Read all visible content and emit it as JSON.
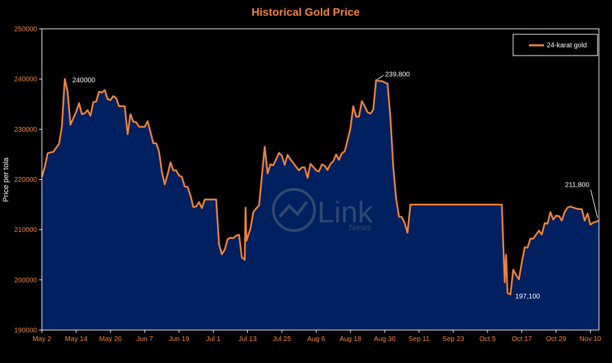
{
  "chart_data": {
    "type": "area",
    "title": "Historical Gold Price",
    "ylabel": "Price per tola",
    "xlabel": "",
    "ylim": [
      190000,
      250000
    ],
    "yticks": [
      190000,
      200000,
      210000,
      220000,
      230000,
      240000,
      250000
    ],
    "xticks": [
      "May 2",
      "May 14",
      "May 26",
      "Jun 7",
      "Jun 19",
      "Jul 1",
      "Jul 13",
      "Jul 25",
      "Aug 6",
      "Aug 18",
      "Aug 30",
      "Sep 11",
      "Sep 23",
      "Oct 5",
      "Oct 17",
      "Oct 29",
      "Nov 10"
    ],
    "x_day_span": 195,
    "legend": {
      "entries": [
        "24-karat gold"
      ],
      "placement": "top-right"
    },
    "series": [
      {
        "name": "24-karat gold",
        "points": [
          [
            0,
            220500
          ],
          [
            1,
            222500
          ],
          [
            2,
            225200
          ],
          [
            3,
            225400
          ],
          [
            4,
            225500
          ],
          [
            5,
            226300
          ],
          [
            6,
            227100
          ],
          [
            7,
            230500
          ],
          [
            8,
            240000
          ],
          [
            9,
            237500
          ],
          [
            10,
            230900
          ],
          [
            11,
            232200
          ],
          [
            12,
            233500
          ],
          [
            13,
            235200
          ],
          [
            14,
            233000
          ],
          [
            15,
            233200
          ],
          [
            16,
            233800
          ],
          [
            17,
            232700
          ],
          [
            18,
            235400
          ],
          [
            19,
            235500
          ],
          [
            20,
            237500
          ],
          [
            21,
            237300
          ],
          [
            22,
            237800
          ],
          [
            23,
            236000
          ],
          [
            24,
            235800
          ],
          [
            25,
            236600
          ],
          [
            26,
            236200
          ],
          [
            27,
            234600
          ],
          [
            28,
            234600
          ],
          [
            29,
            234600
          ],
          [
            30,
            229000
          ],
          [
            31,
            233000
          ],
          [
            32,
            231500
          ],
          [
            33,
            231400
          ],
          [
            34,
            230500
          ],
          [
            35,
            230500
          ],
          [
            36,
            230500
          ],
          [
            37,
            231600
          ],
          [
            38,
            229500
          ],
          [
            39,
            227200
          ],
          [
            40,
            227200
          ],
          [
            41,
            225600
          ],
          [
            42,
            221500
          ],
          [
            43,
            219000
          ],
          [
            44,
            221000
          ],
          [
            45,
            223400
          ],
          [
            46,
            221800
          ],
          [
            47,
            221800
          ],
          [
            48,
            220800
          ],
          [
            49,
            220500
          ],
          [
            50,
            218600
          ],
          [
            51,
            218500
          ],
          [
            52,
            216800
          ],
          [
            53,
            214500
          ],
          [
            54,
            214600
          ],
          [
            55,
            215500
          ],
          [
            56,
            214300
          ],
          [
            57,
            216000
          ],
          [
            58,
            216000
          ],
          [
            59,
            216000
          ],
          [
            60,
            216000
          ],
          [
            61,
            216000
          ],
          [
            62,
            207100
          ],
          [
            63,
            205100
          ],
          [
            64,
            206000
          ],
          [
            65,
            208100
          ],
          [
            66,
            208400
          ],
          [
            67,
            208300
          ],
          [
            68,
            208800
          ],
          [
            69,
            209000
          ],
          [
            70,
            204500
          ],
          [
            71,
            204000
          ],
          [
            71.3,
            214400
          ],
          [
            71.6,
            207800
          ],
          [
            73,
            210200
          ],
          [
            74,
            213500
          ],
          [
            75,
            214200
          ],
          [
            76,
            214800
          ],
          [
            78,
            226500
          ],
          [
            79,
            221200
          ],
          [
            80,
            223000
          ],
          [
            81,
            222800
          ],
          [
            82,
            224000
          ],
          [
            83,
            225300
          ],
          [
            84,
            224700
          ],
          [
            85,
            222900
          ],
          [
            86,
            224900
          ],
          [
            87,
            224000
          ],
          [
            88,
            223300
          ],
          [
            89,
            222500
          ],
          [
            90,
            221800
          ],
          [
            91,
            222400
          ],
          [
            92,
            222400
          ],
          [
            93,
            220300
          ],
          [
            94,
            223100
          ],
          [
            95,
            222500
          ],
          [
            96,
            221800
          ],
          [
            97,
            221600
          ],
          [
            98,
            223000
          ],
          [
            99,
            222700
          ],
          [
            100,
            221900
          ],
          [
            101,
            223100
          ],
          [
            102,
            223600
          ],
          [
            103,
            225000
          ],
          [
            104,
            223900
          ],
          [
            105,
            225200
          ],
          [
            106,
            225600
          ],
          [
            107,
            227800
          ],
          [
            108,
            230200
          ],
          [
            109,
            234600
          ],
          [
            110,
            232500
          ],
          [
            111,
            232500
          ],
          [
            112,
            235600
          ],
          [
            113,
            234600
          ],
          [
            114,
            233400
          ],
          [
            115,
            233100
          ],
          [
            116,
            233900
          ],
          [
            117,
            239800
          ],
          [
            118,
            239600
          ],
          [
            119,
            239600
          ],
          [
            120,
            239300
          ],
          [
            121,
            239100
          ],
          [
            122,
            232300
          ],
          [
            123,
            222400
          ],
          [
            124,
            216200
          ],
          [
            125,
            212600
          ],
          [
            126,
            212500
          ],
          [
            127,
            211300
          ],
          [
            128,
            209400
          ],
          [
            129,
            215000
          ],
          [
            130,
            215000
          ],
          [
            131,
            215000
          ],
          [
            132,
            215000
          ],
          [
            133,
            215000
          ],
          [
            134,
            215000
          ],
          [
            135,
            215000
          ],
          [
            136,
            215000
          ],
          [
            137,
            215000
          ],
          [
            138,
            215000
          ],
          [
            139,
            215000
          ],
          [
            140,
            215000
          ],
          [
            141,
            215000
          ],
          [
            142,
            215000
          ],
          [
            143,
            215000
          ],
          [
            144,
            215000
          ],
          [
            145,
            215000
          ],
          [
            146,
            215000
          ],
          [
            147,
            215000
          ],
          [
            148,
            215000
          ],
          [
            149,
            215000
          ],
          [
            150,
            215000
          ],
          [
            151,
            215000
          ],
          [
            152,
            215000
          ],
          [
            153,
            215000
          ],
          [
            154,
            215000
          ],
          [
            155,
            215000
          ],
          [
            156,
            215000
          ],
          [
            157,
            215000
          ],
          [
            158,
            215000
          ],
          [
            159,
            215000
          ],
          [
            160,
            215000
          ],
          [
            161,
            215000
          ],
          [
            162,
            199500
          ],
          [
            162.5,
            205000
          ],
          [
            163,
            197400
          ],
          [
            164,
            197100
          ],
          [
            165,
            202000
          ],
          [
            166,
            201000
          ],
          [
            167,
            200100
          ],
          [
            168,
            203500
          ],
          [
            169,
            206500
          ],
          [
            170,
            206400
          ],
          [
            171,
            208200
          ],
          [
            172,
            208200
          ],
          [
            173,
            209000
          ],
          [
            174,
            209800
          ],
          [
            175,
            209000
          ],
          [
            176,
            211300
          ],
          [
            177,
            211200
          ],
          [
            178,
            213500
          ],
          [
            179,
            212000
          ],
          [
            180,
            212800
          ],
          [
            181,
            212700
          ],
          [
            182,
            211800
          ],
          [
            183,
            213500
          ],
          [
            184,
            214400
          ],
          [
            185,
            214600
          ],
          [
            186,
            214400
          ],
          [
            187,
            214200
          ],
          [
            188,
            214100
          ],
          [
            189,
            214100
          ],
          [
            190,
            211800
          ],
          [
            191,
            213200
          ],
          [
            192,
            211000
          ],
          [
            193,
            211400
          ],
          [
            194,
            211600
          ],
          [
            195,
            211800
          ]
        ]
      }
    ],
    "annotations": [
      {
        "text": "240000",
        "x": 8,
        "y": 240000
      },
      {
        "text": "239,800",
        "x": 117,
        "y": 239800
      },
      {
        "text": "211,800",
        "x": 195,
        "y": 211800
      },
      {
        "text": "197,100",
        "x": 164,
        "y": 197100
      }
    ],
    "watermark": {
      "brand": "Link",
      "sub": "News"
    },
    "colors": {
      "line": "#f0843c",
      "area": "#002060",
      "axis": "#ffffff",
      "background": "#000000"
    }
  }
}
